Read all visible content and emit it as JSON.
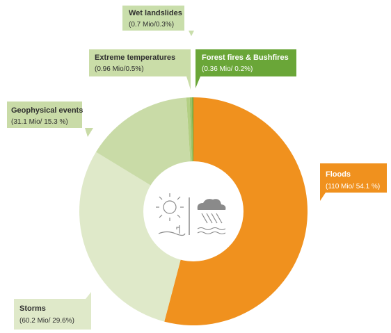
{
  "chart_data": {
    "type": "pie",
    "variant": "donut",
    "unit": "Mio",
    "slices": [
      {
        "name": "Floods",
        "value": 110,
        "percent": 54.1,
        "label": "Floods",
        "value_label": "(110 Mio/ 54.1 %)",
        "color": "#f0911e"
      },
      {
        "name": "Storms",
        "value": 60.2,
        "percent": 29.6,
        "label": "Storms",
        "value_label": "(60.2 Mio/ 29.6%)",
        "color": "#dfe9c9"
      },
      {
        "name": "Geophysical events",
        "value": 31.1,
        "percent": 15.3,
        "label": "Geophysical events",
        "value_label": "(31.1 Mio/ 15.3 %)",
        "color": "#c9dba7"
      },
      {
        "name": "Extreme temperatures",
        "value": 0.96,
        "percent": 0.5,
        "label": "Extreme temperatures",
        "value_label": "(0.96 Mio/0.5%)",
        "color": "#b3cf83"
      },
      {
        "name": "Wet landslides",
        "value": 0.7,
        "percent": 0.3,
        "label": "Wet landslides",
        "value_label": "(0.7 Mio/0.3%)",
        "color": "#9cc266"
      },
      {
        "name": "Forest fires & Bushfires",
        "value": 0.36,
        "percent": 0.2,
        "label": "Forest fires & Bushfires",
        "value_label": "(0.36 Mio/ 0.2%)",
        "color": "#6aa638"
      }
    ]
  },
  "icons": {
    "center_left": "sun-desert-icon",
    "center_right": "rain-cloud-flood-icon"
  }
}
